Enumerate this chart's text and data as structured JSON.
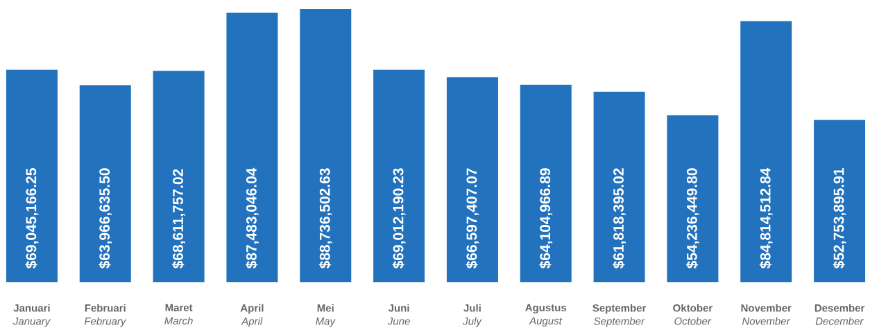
{
  "chart_data": {
    "type": "bar",
    "categories": [
      "**Januari** *January*",
      "**Februari** *February*",
      "**Maret** *March*",
      "**April** *April*",
      "**Mei** *May*",
      "**Juni** *June*",
      "**Juli** *July*",
      "**Agustus** *August*",
      "**September** *September*",
      "**Oktober** *October*",
      "**November** *November*",
      "**Desember** *December*"
    ],
    "values": [
      69045166.25,
      63966635.5,
      68611757.02,
      87483046.04,
      88736502.63,
      69012190.23,
      66597407.07,
      64104966.89,
      61818395.02,
      54236449.8,
      84814512.84,
      52753895.91
    ],
    "value_labels": [
      "$69,045,166.25",
      "$63,966,635.50",
      "$68,611,757.02",
      "$87,483,046.04",
      "$88,736,502.63",
      "$69,012,190.23",
      "$66,597,407.07",
      "$64,104,966.89",
      "$61,818,395.02",
      "$54,236,449.80",
      "$84,814,512.84",
      "$52,753,895.91"
    ],
    "color": "#2272bd"
  }
}
